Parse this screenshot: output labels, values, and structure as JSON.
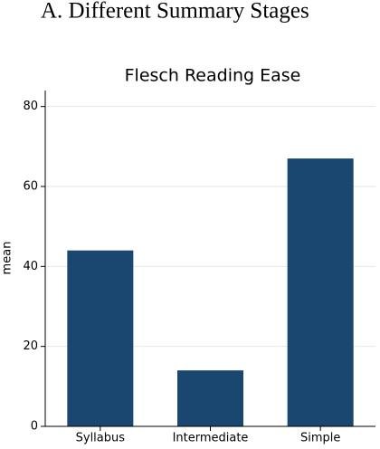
{
  "heading": "A. Different Summary Stages",
  "chart_data": {
    "type": "bar",
    "title": "Flesch Reading Ease",
    "y_label": "mean",
    "categories": [
      "Syllabus",
      "Intermediate",
      "Simple"
    ],
    "values": [
      44,
      14,
      67
    ],
    "color": "#1a476f",
    "ylim": [
      0,
      84
    ],
    "yticks": [
      0,
      20,
      40,
      60,
      80
    ],
    "grid": true
  }
}
